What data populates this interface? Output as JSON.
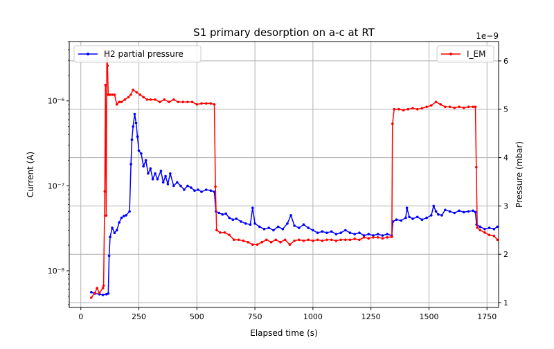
{
  "chart_data": {
    "type": "line",
    "title": "S1 primary desorption on a-c at RT",
    "xlabel": "Elapsed time (s)",
    "ylabel_left": "Current (A)",
    "ylabel_right": "Pressure (mbar)",
    "right_axis_offset_label": "1e−9",
    "xlim": [
      -50,
      1800
    ],
    "x_ticks": [
      0,
      250,
      500,
      750,
      1000,
      1250,
      1500,
      1750
    ],
    "x_tick_labels": [
      "0",
      "250",
      "500",
      "750",
      "1000",
      "1250",
      "1500",
      "1750"
    ],
    "ylim_left_log": [
      3.7e-09,
      5e-06
    ],
    "y_left_scale": "log",
    "y_left_ticks": [
      1e-08,
      1e-07,
      1e-06
    ],
    "y_left_tick_labels": [
      "10⁻⁸",
      "10⁻⁷",
      "10⁻⁶"
    ],
    "ylim_right": [
      0.9,
      6.4
    ],
    "y_right_ticks": [
      1,
      2,
      3,
      4,
      5,
      6
    ],
    "y_right_tick_labels": [
      "1",
      "2",
      "3",
      "4",
      "5",
      "6"
    ],
    "grid": true,
    "series": [
      {
        "name": "H2 partial pressure",
        "axis": "left",
        "color": "#0000ff",
        "legend_position": "top-left",
        "points": [
          [
            45,
            5.6e-09
          ],
          [
            60,
            5.4e-09
          ],
          [
            80,
            5.3e-09
          ],
          [
            95,
            5.2e-09
          ],
          [
            110,
            5.3e-09
          ],
          [
            118,
            5.4e-09
          ],
          [
            122,
            1.5e-08
          ],
          [
            126,
            2.5e-08
          ],
          [
            135,
            3.2e-08
          ],
          [
            145,
            2.8e-08
          ],
          [
            155,
            3e-08
          ],
          [
            165,
            3.7e-08
          ],
          [
            175,
            4.2e-08
          ],
          [
            185,
            4.4e-08
          ],
          [
            195,
            4.5e-08
          ],
          [
            210,
            5e-08
          ],
          [
            216,
            1.8e-07
          ],
          [
            220,
            3.5e-07
          ],
          [
            225,
            5e-07
          ],
          [
            232,
            7e-07
          ],
          [
            238,
            5.5e-07
          ],
          [
            244,
            3.8e-07
          ],
          [
            250,
            2.6e-07
          ],
          [
            260,
            2.4e-07
          ],
          [
            270,
            1.7e-07
          ],
          [
            280,
            2e-07
          ],
          [
            290,
            1.4e-07
          ],
          [
            300,
            1.6e-07
          ],
          [
            310,
            1.2e-07
          ],
          [
            320,
            1.4e-07
          ],
          [
            330,
            1.2e-07
          ],
          [
            345,
            1.5e-07
          ],
          [
            355,
            1.1e-07
          ],
          [
            365,
            1.3e-07
          ],
          [
            375,
            1.05e-07
          ],
          [
            385,
            1.4e-07
          ],
          [
            400,
            1e-07
          ],
          [
            415,
            1.1e-07
          ],
          [
            430,
            1e-07
          ],
          [
            445,
            9e-08
          ],
          [
            460,
            1e-07
          ],
          [
            475,
            9.5e-08
          ],
          [
            490,
            8.8e-08
          ],
          [
            505,
            9e-08
          ],
          [
            520,
            8.5e-08
          ],
          [
            540,
            9e-08
          ],
          [
            560,
            8.8e-08
          ],
          [
            575,
            8.5e-08
          ],
          [
            582,
            5e-08
          ],
          [
            595,
            4.8e-08
          ],
          [
            610,
            4.6e-08
          ],
          [
            625,
            4.7e-08
          ],
          [
            640,
            4.2e-08
          ],
          [
            655,
            4e-08
          ],
          [
            670,
            4.1e-08
          ],
          [
            690,
            3.8e-08
          ],
          [
            710,
            3.6e-08
          ],
          [
            730,
            3.5e-08
          ],
          [
            740,
            5.5e-08
          ],
          [
            750,
            3.6e-08
          ],
          [
            770,
            3.3e-08
          ],
          [
            790,
            3.1e-08
          ],
          [
            810,
            3.2e-08
          ],
          [
            830,
            3e-08
          ],
          [
            850,
            3.3e-08
          ],
          [
            870,
            3.1e-08
          ],
          [
            890,
            3.6e-08
          ],
          [
            905,
            4.5e-08
          ],
          [
            920,
            3.4e-08
          ],
          [
            940,
            3.2e-08
          ],
          [
            960,
            3.5e-08
          ],
          [
            980,
            3.2e-08
          ],
          [
            1000,
            3e-08
          ],
          [
            1020,
            2.8e-08
          ],
          [
            1040,
            2.9e-08
          ],
          [
            1060,
            2.8e-08
          ],
          [
            1080,
            2.9e-08
          ],
          [
            1100,
            2.7e-08
          ],
          [
            1120,
            2.8e-08
          ],
          [
            1140,
            3e-08
          ],
          [
            1160,
            2.8e-08
          ],
          [
            1180,
            2.7e-08
          ],
          [
            1200,
            2.8e-08
          ],
          [
            1220,
            2.6e-08
          ],
          [
            1240,
            2.7e-08
          ],
          [
            1260,
            2.6e-08
          ],
          [
            1280,
            2.7e-08
          ],
          [
            1300,
            2.6e-08
          ],
          [
            1320,
            2.7e-08
          ],
          [
            1340,
            2.6e-08
          ],
          [
            1345,
            3.8e-08
          ],
          [
            1360,
            4e-08
          ],
          [
            1380,
            3.9e-08
          ],
          [
            1400,
            4.2e-08
          ],
          [
            1405,
            5.5e-08
          ],
          [
            1415,
            4.3e-08
          ],
          [
            1430,
            4.1e-08
          ],
          [
            1450,
            4.3e-08
          ],
          [
            1470,
            4e-08
          ],
          [
            1490,
            4.2e-08
          ],
          [
            1510,
            4.5e-08
          ],
          [
            1520,
            5.8e-08
          ],
          [
            1530,
            5e-08
          ],
          [
            1540,
            4.6e-08
          ],
          [
            1555,
            4.5e-08
          ],
          [
            1570,
            5.2e-08
          ],
          [
            1590,
            5e-08
          ],
          [
            1610,
            4.8e-08
          ],
          [
            1630,
            5.1e-08
          ],
          [
            1650,
            4.9e-08
          ],
          [
            1670,
            5e-08
          ],
          [
            1690,
            5.1e-08
          ],
          [
            1700,
            4.9e-08
          ],
          [
            1705,
            3.5e-08
          ],
          [
            1720,
            3.3e-08
          ],
          [
            1740,
            3.1e-08
          ],
          [
            1760,
            3.2e-08
          ],
          [
            1780,
            3.1e-08
          ],
          [
            1795,
            3.3e-08
          ]
        ]
      },
      {
        "name": "I_EM",
        "axis": "right",
        "color": "#ff0000",
        "legend_position": "top-right",
        "points": [
          [
            45,
            1.1
          ],
          [
            60,
            1.2
          ],
          [
            70,
            1.3
          ],
          [
            80,
            1.2
          ],
          [
            95,
            1.3
          ],
          [
            98,
            1.35
          ],
          [
            103,
            3.3
          ],
          [
            106,
            5.5
          ],
          [
            109,
            2.8
          ],
          [
            112,
            6.2
          ],
          [
            115,
            5.9
          ],
          [
            118,
            5.3
          ],
          [
            125,
            5.3
          ],
          [
            135,
            5.3
          ],
          [
            145,
            5.3
          ],
          [
            155,
            5.1
          ],
          [
            165,
            5.15
          ],
          [
            175,
            5.15
          ],
          [
            190,
            5.2
          ],
          [
            205,
            5.25
          ],
          [
            215,
            5.3
          ],
          [
            225,
            5.4
          ],
          [
            240,
            5.35
          ],
          [
            255,
            5.3
          ],
          [
            270,
            5.25
          ],
          [
            285,
            5.2
          ],
          [
            300,
            5.2
          ],
          [
            320,
            5.2
          ],
          [
            340,
            5.15
          ],
          [
            360,
            5.2
          ],
          [
            380,
            5.15
          ],
          [
            400,
            5.2
          ],
          [
            420,
            5.15
          ],
          [
            440,
            5.15
          ],
          [
            460,
            5.15
          ],
          [
            480,
            5.15
          ],
          [
            500,
            5.1
          ],
          [
            520,
            5.12
          ],
          [
            540,
            5.12
          ],
          [
            560,
            5.12
          ],
          [
            575,
            5.1
          ],
          [
            580,
            3.4
          ],
          [
            585,
            2.5
          ],
          [
            600,
            2.45
          ],
          [
            620,
            2.45
          ],
          [
            640,
            2.4
          ],
          [
            660,
            2.3
          ],
          [
            680,
            2.3
          ],
          [
            700,
            2.28
          ],
          [
            720,
            2.25
          ],
          [
            740,
            2.2
          ],
          [
            760,
            2.2
          ],
          [
            780,
            2.25
          ],
          [
            800,
            2.3
          ],
          [
            820,
            2.25
          ],
          [
            840,
            2.3
          ],
          [
            860,
            2.25
          ],
          [
            880,
            2.3
          ],
          [
            900,
            2.2
          ],
          [
            920,
            2.28
          ],
          [
            940,
            2.3
          ],
          [
            960,
            2.28
          ],
          [
            980,
            2.3
          ],
          [
            1000,
            2.28
          ],
          [
            1020,
            2.3
          ],
          [
            1040,
            2.28
          ],
          [
            1060,
            2.3
          ],
          [
            1080,
            2.3
          ],
          [
            1100,
            2.28
          ],
          [
            1120,
            2.3
          ],
          [
            1140,
            2.3
          ],
          [
            1160,
            2.3
          ],
          [
            1180,
            2.32
          ],
          [
            1200,
            2.3
          ],
          [
            1220,
            2.35
          ],
          [
            1240,
            2.33
          ],
          [
            1260,
            2.35
          ],
          [
            1280,
            2.35
          ],
          [
            1300,
            2.33
          ],
          [
            1320,
            2.35
          ],
          [
            1340,
            2.36
          ],
          [
            1343,
            4.7
          ],
          [
            1350,
            5.0
          ],
          [
            1370,
            5.0
          ],
          [
            1390,
            4.98
          ],
          [
            1410,
            5.0
          ],
          [
            1430,
            5.02
          ],
          [
            1450,
            5.0
          ],
          [
            1470,
            5.02
          ],
          [
            1490,
            5.05
          ],
          [
            1510,
            5.08
          ],
          [
            1530,
            5.15
          ],
          [
            1550,
            5.1
          ],
          [
            1570,
            5.05
          ],
          [
            1590,
            5.05
          ],
          [
            1610,
            5.03
          ],
          [
            1630,
            5.05
          ],
          [
            1650,
            5.03
          ],
          [
            1670,
            5.05
          ],
          [
            1690,
            5.05
          ],
          [
            1700,
            5.05
          ],
          [
            1704,
            3.8
          ],
          [
            1708,
            2.55
          ],
          [
            1720,
            2.5
          ],
          [
            1740,
            2.45
          ],
          [
            1760,
            2.4
          ],
          [
            1780,
            2.38
          ],
          [
            1795,
            2.3
          ]
        ]
      }
    ]
  }
}
